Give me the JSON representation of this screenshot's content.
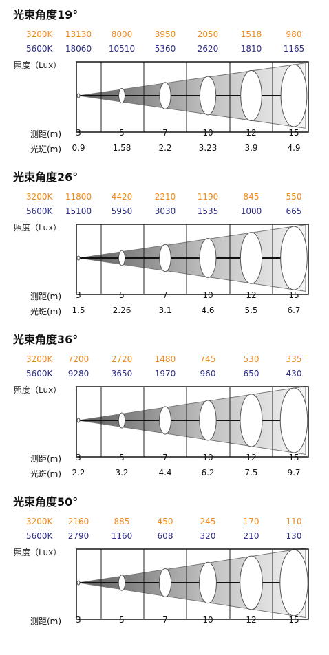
{
  "colors": {
    "warm": "#f08a1c",
    "cool": "#2e2f86",
    "frame": "#222222",
    "cone_dark": "#5a5a5a",
    "cone_light": "#f4f4f4"
  },
  "labels": {
    "k3200": "3200K",
    "k5600": "5600K",
    "illuminance": "照度（Lux）",
    "distance": "测距(m)",
    "spot": "光斑(m)"
  },
  "chart_data": [
    {
      "type": "table",
      "title": "光束角度19°",
      "x": [
        "3",
        "5",
        "7",
        "10",
        "12",
        "15"
      ],
      "series": [
        {
          "name": "3200K",
          "values": [
            "13130",
            "8000",
            "3950",
            "2050",
            "1518",
            "980"
          ]
        },
        {
          "name": "5600K",
          "values": [
            "18060",
            "10510",
            "5360",
            "2620",
            "1810",
            "1165"
          ]
        }
      ],
      "spot": [
        "0.9",
        "1.58",
        "2.2",
        "3.23",
        "3.9",
        "4.9"
      ]
    },
    {
      "type": "table",
      "title": "光束角度26°",
      "x": [
        "3",
        "5",
        "7",
        "10",
        "12",
        "15"
      ],
      "series": [
        {
          "name": "3200K",
          "values": [
            "11800",
            "4420",
            "2210",
            "1190",
            "845",
            "550"
          ]
        },
        {
          "name": "5600K",
          "values": [
            "15100",
            "5950",
            "3030",
            "1535",
            "1000",
            "665"
          ]
        }
      ],
      "spot": [
        "1.5",
        "2.26",
        "3.1",
        "4.6",
        "5.5",
        "6.7"
      ]
    },
    {
      "type": "table",
      "title": "光束角度36°",
      "x": [
        "3",
        "5",
        "7",
        "10",
        "12",
        "15"
      ],
      "series": [
        {
          "name": "3200K",
          "values": [
            "7200",
            "2720",
            "1480",
            "745",
            "530",
            "335"
          ]
        },
        {
          "name": "5600K",
          "values": [
            "9280",
            "3650",
            "1970",
            "960",
            "650",
            "430"
          ]
        }
      ],
      "spot": [
        "2.2",
        "3.2",
        "4.4",
        "6.2",
        "7.5",
        "9.7"
      ]
    },
    {
      "type": "table",
      "title": "光束角度50°",
      "x": [
        "3",
        "5",
        "7",
        "10",
        "12",
        "15"
      ],
      "series": [
        {
          "name": "3200K",
          "values": [
            "2160",
            "885",
            "450",
            "245",
            "170",
            "110"
          ]
        },
        {
          "name": "5600K",
          "values": [
            "2790",
            "1160",
            "608",
            "320",
            "210",
            "130"
          ]
        }
      ],
      "spot": []
    }
  ]
}
